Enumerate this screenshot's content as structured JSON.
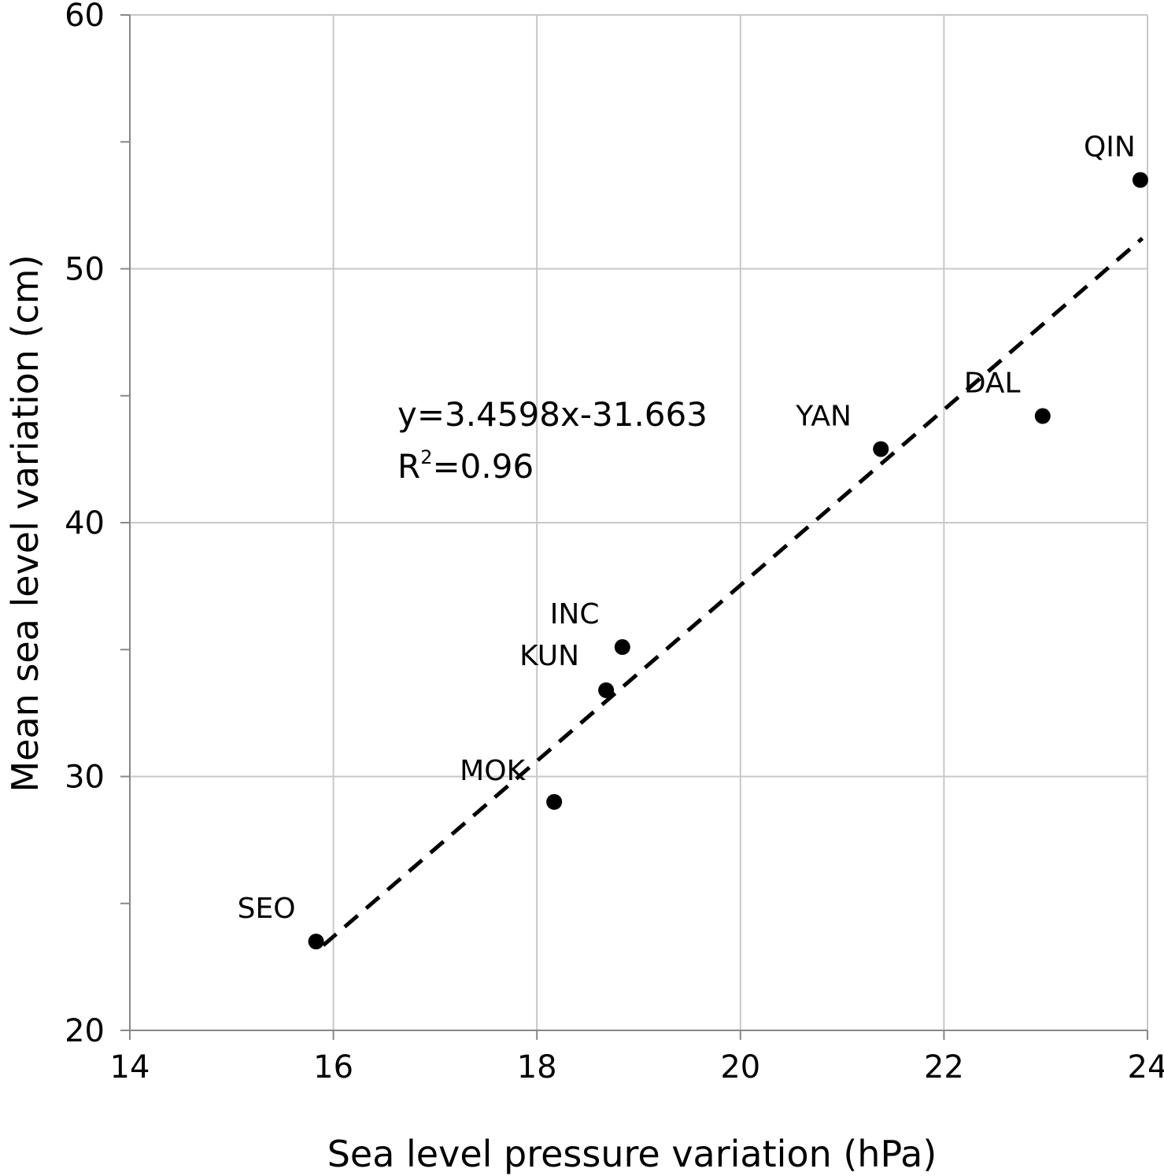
{
  "chart_data": {
    "type": "scatter",
    "title": "",
    "xlabel": "Sea level pressure variation (hPa)",
    "ylabel": "Mean sea level variation (cm)",
    "xlim": [
      14,
      24
    ],
    "ylim": [
      20,
      60
    ],
    "xticks": [
      14,
      16,
      18,
      20,
      22,
      24
    ],
    "yticks": [
      20,
      30,
      40,
      50,
      60
    ],
    "grid": true,
    "points": [
      {
        "label": "SEO",
        "x": 15.83,
        "y": 23.5
      },
      {
        "label": "MOK",
        "x": 18.17,
        "y": 29.0
      },
      {
        "label": "KUN",
        "x": 18.68,
        "y": 33.4
      },
      {
        "label": "INC",
        "x": 18.84,
        "y": 35.1
      },
      {
        "label": "YAN",
        "x": 21.38,
        "y": 42.9
      },
      {
        "label": "DAL",
        "x": 22.97,
        "y": 44.2
      },
      {
        "label": "QIN",
        "x": 23.93,
        "y": 53.5
      }
    ],
    "trendline": {
      "slope": 3.4598,
      "intercept": -31.663,
      "x_range": [
        15.9,
        23.95
      ],
      "equation_label": "y=3.4598x-31.663",
      "r2_label_prefix": "R",
      "r2_label_sup": "2",
      "r2_label_suffix": "=0.96"
    }
  }
}
